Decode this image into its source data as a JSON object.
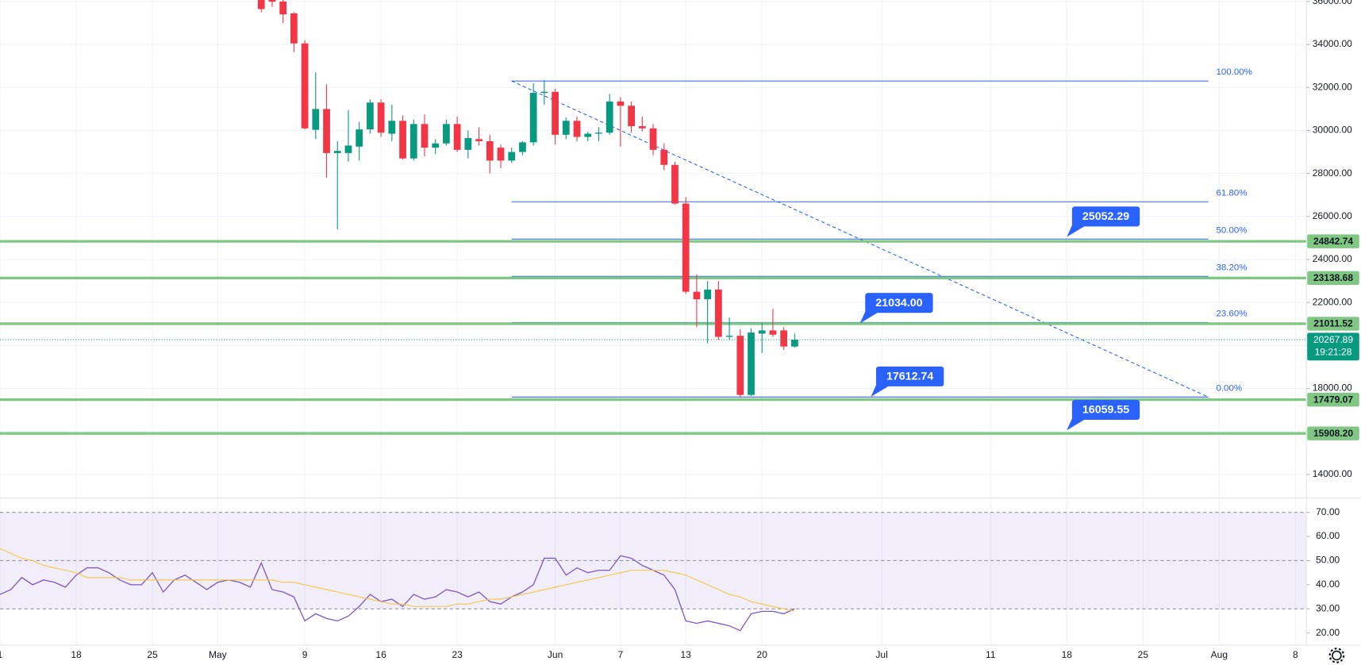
{
  "chart_data": [
    {
      "type": "candlestick",
      "x": [
        "05-05",
        "05-06",
        "05-07",
        "05-08",
        "05-09",
        "05-10",
        "05-11",
        "05-12",
        "05-13",
        "05-14",
        "05-15",
        "05-16",
        "05-17",
        "05-18",
        "05-19",
        "05-20",
        "05-21",
        "05-22",
        "05-23",
        "05-24",
        "05-25",
        "05-26",
        "05-27",
        "05-28",
        "05-29",
        "05-30",
        "05-31",
        "06-01",
        "06-02",
        "06-03",
        "06-04",
        "06-05",
        "06-06",
        "06-07",
        "06-08",
        "06-09",
        "06-10",
        "06-11",
        "06-12",
        "06-13",
        "06-14",
        "06-15",
        "06-16",
        "06-17",
        "06-18",
        "06-19",
        "06-20",
        "06-21",
        "06-22",
        "06-23"
      ],
      "open": [
        36500,
        36600,
        36000,
        35450,
        34050,
        30030,
        31000,
        28950,
        28950,
        29250,
        30050,
        31300,
        29850,
        30450,
        28700,
        30300,
        29200,
        29400,
        30300,
        29100,
        29600,
        29500,
        29200,
        28600,
        29000,
        29450,
        31750,
        31800,
        29800,
        30450,
        29700,
        29850,
        29900,
        31350,
        31150,
        30200,
        30100,
        29100,
        28400,
        26600,
        22500,
        22150,
        22600,
        20400,
        20450,
        17700,
        20550,
        20700,
        20700,
        19950
      ],
      "high": [
        37000,
        36700,
        36100,
        35500,
        34200,
        32700,
        32150,
        29500,
        30950,
        30400,
        31450,
        31450,
        31200,
        30700,
        30500,
        30750,
        29600,
        30500,
        30650,
        30000,
        30150,
        29800,
        29350,
        29200,
        29500,
        32200,
        32350,
        31950,
        30600,
        30650,
        29950,
        30150,
        31700,
        31550,
        31350,
        30650,
        30300,
        29400,
        28550,
        26900,
        23300,
        23000,
        23000,
        21300,
        20750,
        20800,
        21050,
        21700,
        20850,
        20550
      ],
      "low": [
        35500,
        35750,
        35000,
        33650,
        30050,
        29600,
        27800,
        25400,
        28550,
        28600,
        29850,
        29700,
        29500,
        28650,
        28600,
        28800,
        28900,
        29300,
        29000,
        28700,
        29300,
        28000,
        28250,
        28500,
        28850,
        29300,
        31200,
        29350,
        29600,
        29500,
        29500,
        29500,
        29800,
        29250,
        29900,
        29950,
        28850,
        28150,
        26550,
        22400,
        20850,
        20100,
        20250,
        20250,
        17600,
        17650,
        19650,
        20400,
        19800,
        19900
      ],
      "close": [
        35650,
        35990,
        35400,
        34050,
        30100,
        31000,
        28950,
        29050,
        29300,
        30050,
        31300,
        29900,
        30450,
        28700,
        30300,
        29200,
        29400,
        30300,
        29100,
        29650,
        29500,
        28600,
        28600,
        29000,
        29450,
        31750,
        31800,
        29800,
        30450,
        29700,
        29850,
        29900,
        31350,
        31150,
        30200,
        30100,
        29100,
        28400,
        26600,
        22500,
        22150,
        22600,
        20400,
        20450,
        17700,
        20600,
        20700,
        20500,
        19950,
        20267.89
      ],
      "up_color": "#089981",
      "down_color": "#f23645",
      "xlim": [
        "04-11",
        "08-09"
      ],
      "ylim": [
        12910,
        36070
      ],
      "yticks": [
        {
          "value": 14000,
          "label": "14000.00"
        },
        {
          "value": 16000,
          "label": "16000.00"
        },
        {
          "value": 18000,
          "label": "18000.00"
        },
        {
          "value": 20000,
          "label": "20000.00"
        },
        {
          "value": 22000,
          "label": "22000.00"
        },
        {
          "value": 24000,
          "label": "24000.00"
        },
        {
          "value": 26000,
          "label": "26000.00"
        },
        {
          "value": 28000,
          "label": "28000.00"
        },
        {
          "value": 30000,
          "label": "30000.00"
        },
        {
          "value": 32000,
          "label": "32000.00"
        },
        {
          "value": 34000,
          "label": "34000.00"
        },
        {
          "value": 36000,
          "label": "36000.00"
        }
      ],
      "xticks": [
        {
          "value": "04-11",
          "label": "1"
        },
        {
          "value": "04-18",
          "label": "18"
        },
        {
          "value": "04-25",
          "label": "25"
        },
        {
          "value": "05-01",
          "label": "May"
        },
        {
          "value": "05-09",
          "label": "9"
        },
        {
          "value": "05-16",
          "label": "16"
        },
        {
          "value": "05-23",
          "label": "23"
        },
        {
          "value": "06-01",
          "label": "Jun"
        },
        {
          "value": "06-07",
          "label": "7"
        },
        {
          "value": "06-13",
          "label": "13"
        },
        {
          "value": "06-20",
          "label": "20"
        },
        {
          "value": "07-01",
          "label": "Jul"
        },
        {
          "value": "07-11",
          "label": "11"
        },
        {
          "value": "07-18",
          "label": "18"
        },
        {
          "value": "07-25",
          "label": "25"
        },
        {
          "value": "08-01",
          "label": "Aug"
        },
        {
          "value": "08-08",
          "label": "8"
        }
      ],
      "grid": true,
      "levels": [
        24842.74,
        23138.68,
        21011.52,
        17479.07,
        {
          "value": 15908.2,
          "label": "15908.20"
        }
      ],
      "level_color": "#81c784",
      "last_price": {
        "value": 20267.89,
        "time": "19:21:28",
        "color": "#089981"
      },
      "fibonacci": {
        "color": "#2962ff",
        "start": "05-28",
        "end": "07-31",
        "levels": [
          {
            "label": "100.00%",
            "value": 32300
          },
          {
            "label": "61.80%",
            "value": 26685
          },
          {
            "label": "50.00%",
            "value": 24950
          },
          {
            "label": "38.20%",
            "value": 23215
          },
          {
            "label": "23.60%",
            "value": 21069
          },
          {
            "label": "0.00%",
            "value": 17600
          }
        ]
      },
      "trendline": {
        "x": [
          "05-28",
          "07-31"
        ],
        "values": [
          32300,
          17600
        ],
        "color": "#2962ff"
      },
      "callouts": [
        {
          "x": "07-18",
          "value": 25052.29
        },
        {
          "x": "06-29",
          "value": 21034,
          "label": "21034.00"
        },
        {
          "x": "06-30",
          "value": 17612.74
        },
        {
          "x": "07-18",
          "value": 16059.55
        }
      ],
      "callout_color": "#2962ff"
    },
    {
      "type": "line",
      "x": [
        "04-11",
        "04-12",
        "04-13",
        "04-14",
        "04-15",
        "04-16",
        "04-17",
        "04-18",
        "04-19",
        "04-20",
        "04-21",
        "04-22",
        "04-23",
        "04-24",
        "04-25",
        "04-26",
        "04-27",
        "04-28",
        "04-29",
        "04-30",
        "05-01",
        "05-02",
        "05-03",
        "05-04",
        "05-05",
        "05-06",
        "05-07",
        "05-08",
        "05-09",
        "05-10",
        "05-11",
        "05-12",
        "05-13",
        "05-14",
        "05-15",
        "05-16",
        "05-17",
        "05-18",
        "05-19",
        "05-20",
        "05-21",
        "05-22",
        "05-23",
        "05-24",
        "05-25",
        "05-26",
        "05-27",
        "05-28",
        "05-29",
        "05-30",
        "05-31",
        "06-01",
        "06-02",
        "06-03",
        "06-04",
        "06-05",
        "06-06",
        "06-07",
        "06-08",
        "06-09",
        "06-10",
        "06-11",
        "06-12",
        "06-13",
        "06-14",
        "06-15",
        "06-16",
        "06-17",
        "06-18",
        "06-19",
        "06-20",
        "06-21",
        "06-22",
        "06-23"
      ],
      "series": [
        {
          "color": "#7e57c2",
          "values": [
            36,
            38,
            43,
            40,
            42,
            41,
            39,
            44,
            47,
            47,
            45,
            42,
            40,
            40,
            45,
            37,
            42,
            44,
            41,
            38,
            41,
            42,
            41,
            39,
            49,
            38,
            37,
            35,
            25,
            28,
            26,
            25,
            27,
            31,
            36,
            33,
            34,
            31,
            36,
            34,
            35,
            38,
            37,
            35,
            37,
            33,
            32,
            35,
            37,
            40,
            51,
            51,
            44,
            47,
            45,
            46,
            46,
            52,
            51,
            48,
            46,
            44,
            38,
            25,
            24,
            25,
            24,
            23,
            21,
            28,
            29,
            29,
            28,
            30
          ]
        },
        {
          "color": "#f5c542",
          "values": [
            55,
            53,
            51,
            50,
            48,
            47,
            46,
            45,
            43,
            43,
            43,
            43,
            42,
            42,
            42,
            42,
            42,
            42,
            42,
            42,
            42,
            42,
            42,
            42,
            42,
            42,
            41,
            41,
            40,
            39,
            38,
            37,
            36,
            35,
            34,
            33,
            32,
            32,
            31,
            31,
            31,
            31,
            32,
            32,
            33,
            34,
            34,
            35,
            36,
            37,
            38,
            39,
            40,
            41,
            42,
            43,
            44,
            45,
            46,
            46,
            46,
            46,
            45,
            44,
            42,
            40,
            38,
            36,
            35,
            33,
            32,
            31,
            30,
            29
          ]
        }
      ],
      "xlim": [
        "04-11",
        "08-09"
      ],
      "ylim": [
        15,
        76
      ],
      "yticks": [
        {
          "value": 20,
          "label": "20.00"
        },
        {
          "value": 30,
          "label": "30.00"
        },
        {
          "value": 40,
          "label": "40.00"
        },
        {
          "value": 50,
          "label": "50.00"
        },
        {
          "value": 60,
          "label": "60.00"
        },
        {
          "value": 70,
          "label": "70.00"
        }
      ],
      "band": [
        30,
        70
      ],
      "midline": 50,
      "band_color": "#7e57c2"
    }
  ]
}
